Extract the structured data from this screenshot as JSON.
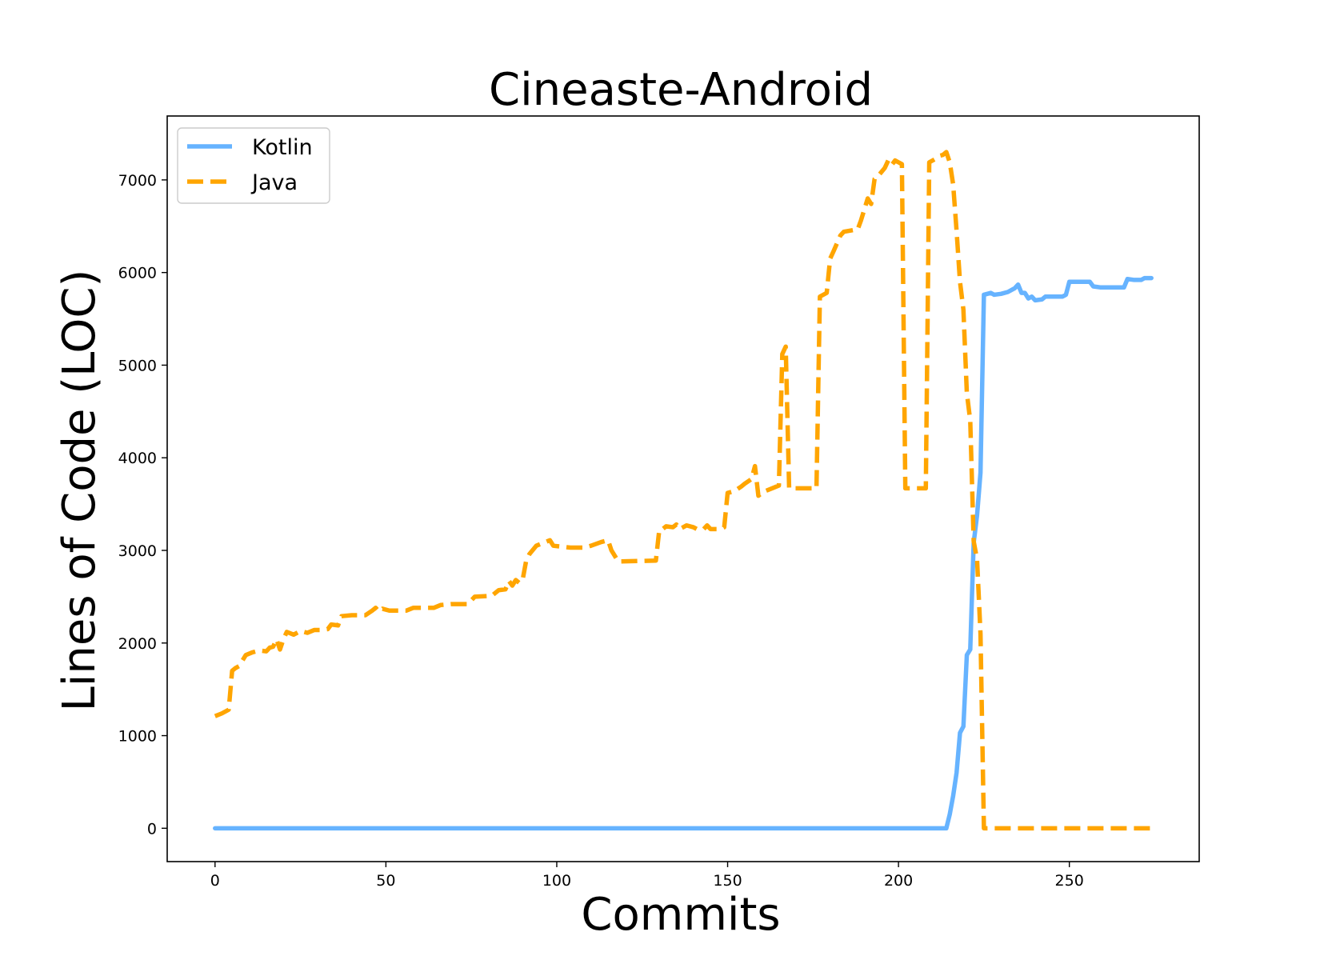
{
  "chart_data": {
    "type": "line",
    "title": "Cineaste-Android",
    "xlabel": "Commits",
    "ylabel": "Lines of Code (LOC)",
    "xlim": [
      -14,
      288
    ],
    "ylim": [
      -360,
      7690
    ],
    "xticks": [
      0,
      50,
      100,
      150,
      200,
      250
    ],
    "yticks": [
      0,
      1000,
      2000,
      3000,
      4000,
      5000,
      6000,
      7000
    ],
    "grid": false,
    "legend": "top-left",
    "series": [
      {
        "name": "Kotlin",
        "color": "#66b3ff",
        "style": "solid",
        "points": [
          [
            0,
            0
          ],
          [
            214,
            0
          ],
          [
            215,
            150
          ],
          [
            216,
            350
          ],
          [
            217,
            600
          ],
          [
            218,
            1030
          ],
          [
            219,
            1100
          ],
          [
            220,
            1870
          ],
          [
            221,
            1930
          ],
          [
            222,
            3080
          ],
          [
            223,
            3380
          ],
          [
            224,
            3840
          ],
          [
            225,
            5760
          ],
          [
            226,
            5770
          ],
          [
            227,
            5780
          ],
          [
            228,
            5760
          ],
          [
            230,
            5770
          ],
          [
            232,
            5790
          ],
          [
            234,
            5830
          ],
          [
            235,
            5870
          ],
          [
            236,
            5780
          ],
          [
            237,
            5780
          ],
          [
            238,
            5720
          ],
          [
            239,
            5740
          ],
          [
            240,
            5700
          ],
          [
            242,
            5710
          ],
          [
            243,
            5740
          ],
          [
            248,
            5740
          ],
          [
            249,
            5760
          ],
          [
            250,
            5900
          ],
          [
            256,
            5900
          ],
          [
            257,
            5850
          ],
          [
            259,
            5840
          ],
          [
            266,
            5840
          ],
          [
            267,
            5930
          ],
          [
            269,
            5920
          ],
          [
            271,
            5920
          ],
          [
            272,
            5940
          ],
          [
            274,
            5940
          ]
        ]
      },
      {
        "name": "Java",
        "color": "#ffa500",
        "style": "dashed",
        "points": [
          [
            0,
            1210
          ],
          [
            2,
            1240
          ],
          [
            4,
            1280
          ],
          [
            5,
            1700
          ],
          [
            6,
            1730
          ],
          [
            7,
            1750
          ],
          [
            9,
            1870
          ],
          [
            11,
            1900
          ],
          [
            13,
            1920
          ],
          [
            15,
            1910
          ],
          [
            16,
            1950
          ],
          [
            17,
            1960
          ],
          [
            18,
            2040
          ],
          [
            19,
            1930
          ],
          [
            20,
            2040
          ],
          [
            21,
            2120
          ],
          [
            23,
            2090
          ],
          [
            25,
            2130
          ],
          [
            27,
            2110
          ],
          [
            29,
            2140
          ],
          [
            31,
            2140
          ],
          [
            33,
            2150
          ],
          [
            34,
            2200
          ],
          [
            36,
            2190
          ],
          [
            37,
            2290
          ],
          [
            40,
            2300
          ],
          [
            44,
            2300
          ],
          [
            46,
            2350
          ],
          [
            47,
            2380
          ],
          [
            48,
            2340
          ],
          [
            49,
            2370
          ],
          [
            51,
            2350
          ],
          [
            56,
            2350
          ],
          [
            58,
            2380
          ],
          [
            64,
            2380
          ],
          [
            66,
            2410
          ],
          [
            69,
            2420
          ],
          [
            74,
            2420
          ],
          [
            76,
            2500
          ],
          [
            81,
            2510
          ],
          [
            83,
            2570
          ],
          [
            85,
            2580
          ],
          [
            86,
            2670
          ],
          [
            87,
            2620
          ],
          [
            88,
            2680
          ],
          [
            89,
            2650
          ],
          [
            90,
            2680
          ],
          [
            91,
            2880
          ],
          [
            92,
            2960
          ],
          [
            94,
            3050
          ],
          [
            96,
            3080
          ],
          [
            98,
            3110
          ],
          [
            99,
            3050
          ],
          [
            104,
            3030
          ],
          [
            108,
            3030
          ],
          [
            110,
            3050
          ],
          [
            113,
            3090
          ],
          [
            115,
            3110
          ],
          [
            116,
            3000
          ],
          [
            118,
            2880
          ],
          [
            129,
            2890
          ],
          [
            130,
            3220
          ],
          [
            131,
            3230
          ],
          [
            132,
            3260
          ],
          [
            134,
            3250
          ],
          [
            135,
            3280
          ],
          [
            136,
            3230
          ],
          [
            138,
            3270
          ],
          [
            140,
            3250
          ],
          [
            141,
            3230
          ],
          [
            143,
            3230
          ],
          [
            144,
            3270
          ],
          [
            145,
            3230
          ],
          [
            148,
            3230
          ],
          [
            149,
            3250
          ],
          [
            150,
            3620
          ],
          [
            152,
            3640
          ],
          [
            154,
            3690
          ],
          [
            155,
            3720
          ],
          [
            157,
            3770
          ],
          [
            158,
            3910
          ],
          [
            159,
            3590
          ],
          [
            160,
            3620
          ],
          [
            161,
            3640
          ],
          [
            163,
            3670
          ],
          [
            165,
            3700
          ],
          [
            166,
            5120
          ],
          [
            167,
            5200
          ],
          [
            168,
            3670
          ],
          [
            176,
            3670
          ],
          [
            177,
            5740
          ],
          [
            179,
            5780
          ],
          [
            180,
            6150
          ],
          [
            181,
            6230
          ],
          [
            183,
            6400
          ],
          [
            184,
            6440
          ],
          [
            187,
            6460
          ],
          [
            188,
            6460
          ],
          [
            189,
            6560
          ],
          [
            191,
            6800
          ],
          [
            192,
            6740
          ],
          [
            193,
            7010
          ],
          [
            194,
            7040
          ],
          [
            196,
            7130
          ],
          [
            197,
            7210
          ],
          [
            198,
            7160
          ],
          [
            199,
            7210
          ],
          [
            200,
            7190
          ],
          [
            201,
            7170
          ],
          [
            202,
            3670
          ],
          [
            208,
            3670
          ],
          [
            209,
            7190
          ],
          [
            211,
            7230
          ],
          [
            212,
            7260
          ],
          [
            213,
            7270
          ],
          [
            214,
            7300
          ],
          [
            215,
            7190
          ],
          [
            216,
            6950
          ],
          [
            217,
            6450
          ],
          [
            218,
            5900
          ],
          [
            219,
            5600
          ],
          [
            220,
            4700
          ],
          [
            221,
            4400
          ],
          [
            222,
            3100
          ],
          [
            223,
            2900
          ],
          [
            224,
            2100
          ],
          [
            225,
            0
          ],
          [
            274,
            0
          ]
        ]
      }
    ]
  }
}
